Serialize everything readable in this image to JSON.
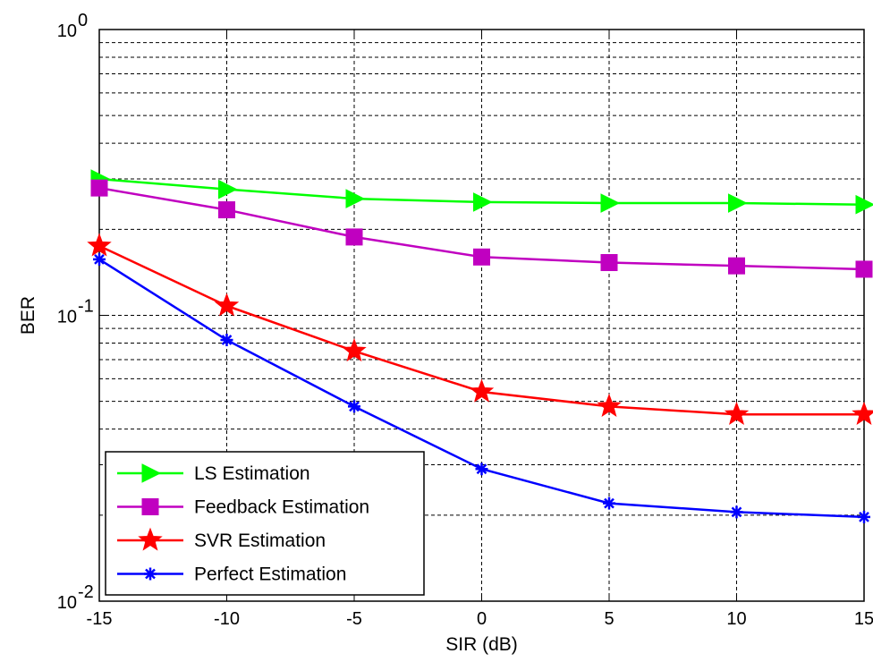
{
  "chart_data": {
    "type": "line",
    "title": "",
    "xlabel": "SIR (dB)",
    "ylabel": "BER",
    "x": [
      -15,
      -10,
      -5,
      0,
      5,
      10,
      15
    ],
    "xlim": [
      -15,
      15
    ],
    "ylim": [
      0.01,
      1
    ],
    "y_scale": "log",
    "grid": true,
    "x_tick_labels": [
      "-15",
      "-10",
      "-5",
      "0",
      "5",
      "10",
      "15"
    ],
    "y_tick_labels": [
      {
        "base": "10",
        "exp": "-2",
        "value": 0.01
      },
      {
        "base": "10",
        "exp": "-1",
        "value": 0.1
      },
      {
        "base": "10",
        "exp": "0",
        "value": 1
      }
    ],
    "legend_position": "bottom-left",
    "series": [
      {
        "name": "LS Estimation",
        "color": "#00ff00",
        "marker": "triangle-right",
        "values": [
          0.3,
          0.276,
          0.256,
          0.249,
          0.247,
          0.247,
          0.244
        ]
      },
      {
        "name": "Feedback Estimation",
        "color": "#c000c0",
        "marker": "square",
        "values": [
          0.279,
          0.234,
          0.188,
          0.16,
          0.153,
          0.149,
          0.145
        ]
      },
      {
        "name": "SVR Estimation",
        "color": "#ff0000",
        "marker": "pentagram",
        "values": [
          0.175,
          0.108,
          0.075,
          0.054,
          0.048,
          0.045,
          0.045
        ]
      },
      {
        "name": "Perfect Estimation",
        "color": "#0000ff",
        "marker": "asterisk",
        "values": [
          0.157,
          0.082,
          0.048,
          0.029,
          0.022,
          0.0205,
          0.0197
        ]
      }
    ]
  }
}
